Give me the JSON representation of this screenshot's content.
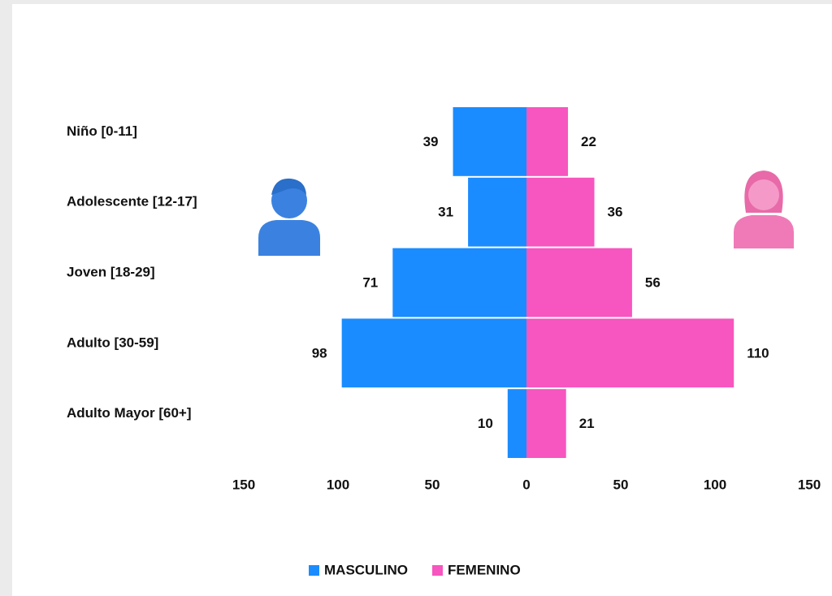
{
  "chart_data": {
    "type": "pyramid",
    "categories": [
      "Niño [0-11]",
      "Adolescente [12-17]",
      "Joven [18-29]",
      "Adulto [30-59]",
      "Adulto Mayor [60+]"
    ],
    "series": [
      {
        "name": "MASCULINO",
        "color": "#1a8cff",
        "values": [
          -39,
          -31,
          -71,
          -98,
          -10
        ],
        "value_labels": [
          "39",
          "31",
          "71",
          "98",
          "10"
        ]
      },
      {
        "name": "FEMENINO",
        "color": "#f755bf",
        "values": [
          22,
          36,
          56,
          110,
          21
        ]
      }
    ],
    "xlim": [
      -150,
      150
    ],
    "xticks": [
      {
        "value": -150,
        "label": "150"
      },
      {
        "value": -100,
        "label": "100"
      },
      {
        "value": -50,
        "label": "50"
      },
      0,
      50,
      100,
      150
    ],
    "legend": "bottom"
  }
}
